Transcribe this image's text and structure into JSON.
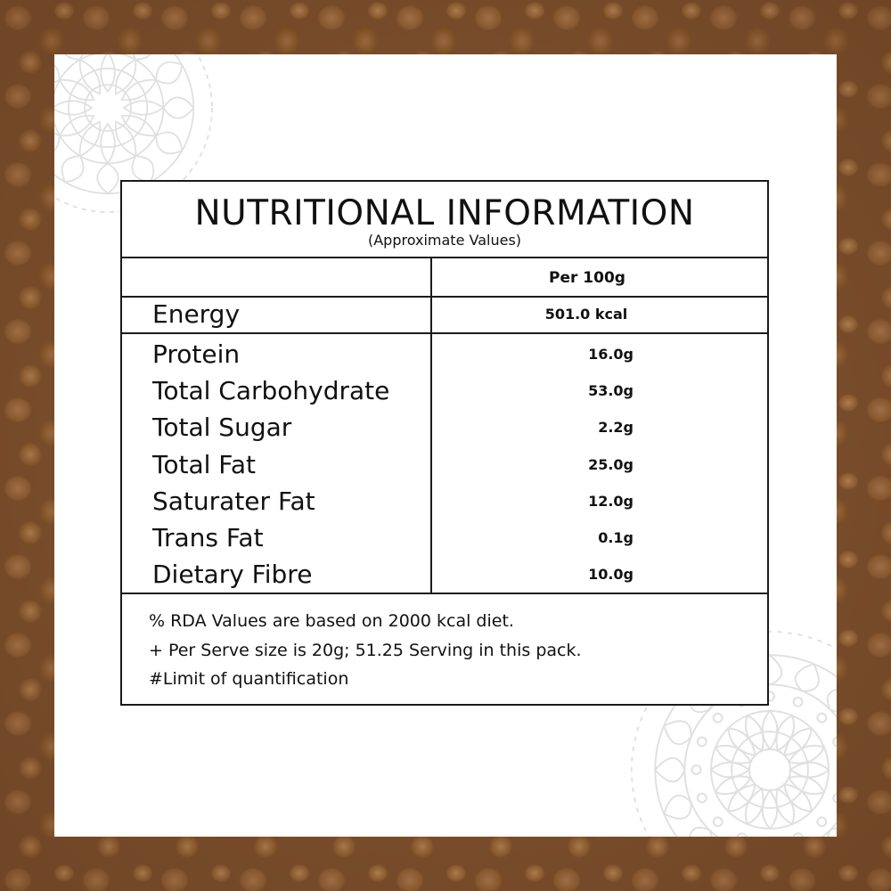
{
  "title": "NUTRITIONAL INFORMATION",
  "subtitle": "(Approximate Values)",
  "column_header": "Per 100g",
  "energy": {
    "label": "Energy",
    "value": "501.0 kcal"
  },
  "nutrients": [
    {
      "label": "Protein",
      "value": "16.0g"
    },
    {
      "label": "Total Carbohydrate",
      "value": "53.0g"
    },
    {
      "label": "Total Sugar",
      "value": "2.2g"
    },
    {
      "label": "Total Fat",
      "value": "25.0g"
    },
    {
      "label": "Saturater Fat",
      "value": "12.0g"
    },
    {
      "label": "Trans Fat",
      "value": "0.1g"
    },
    {
      "label": "Dietary Fibre",
      "value": "10.0g"
    }
  ],
  "footnotes": [
    "% RDA Values are based on 2000 kcal diet.",
    "+ Per Serve size is 20g; 51.25 Serving in this pack.",
    "#Limit of quantification"
  ],
  "decorations": {
    "background": "chickpeas-photo",
    "ornaments": [
      "mandala-ornament-top-left",
      "mandala-ornament-bottom-right"
    ],
    "colors": {
      "border": "#1a1a1a",
      "card": "#ffffff",
      "background": "#8a5a34",
      "ornament": "#d9d9d9"
    }
  }
}
